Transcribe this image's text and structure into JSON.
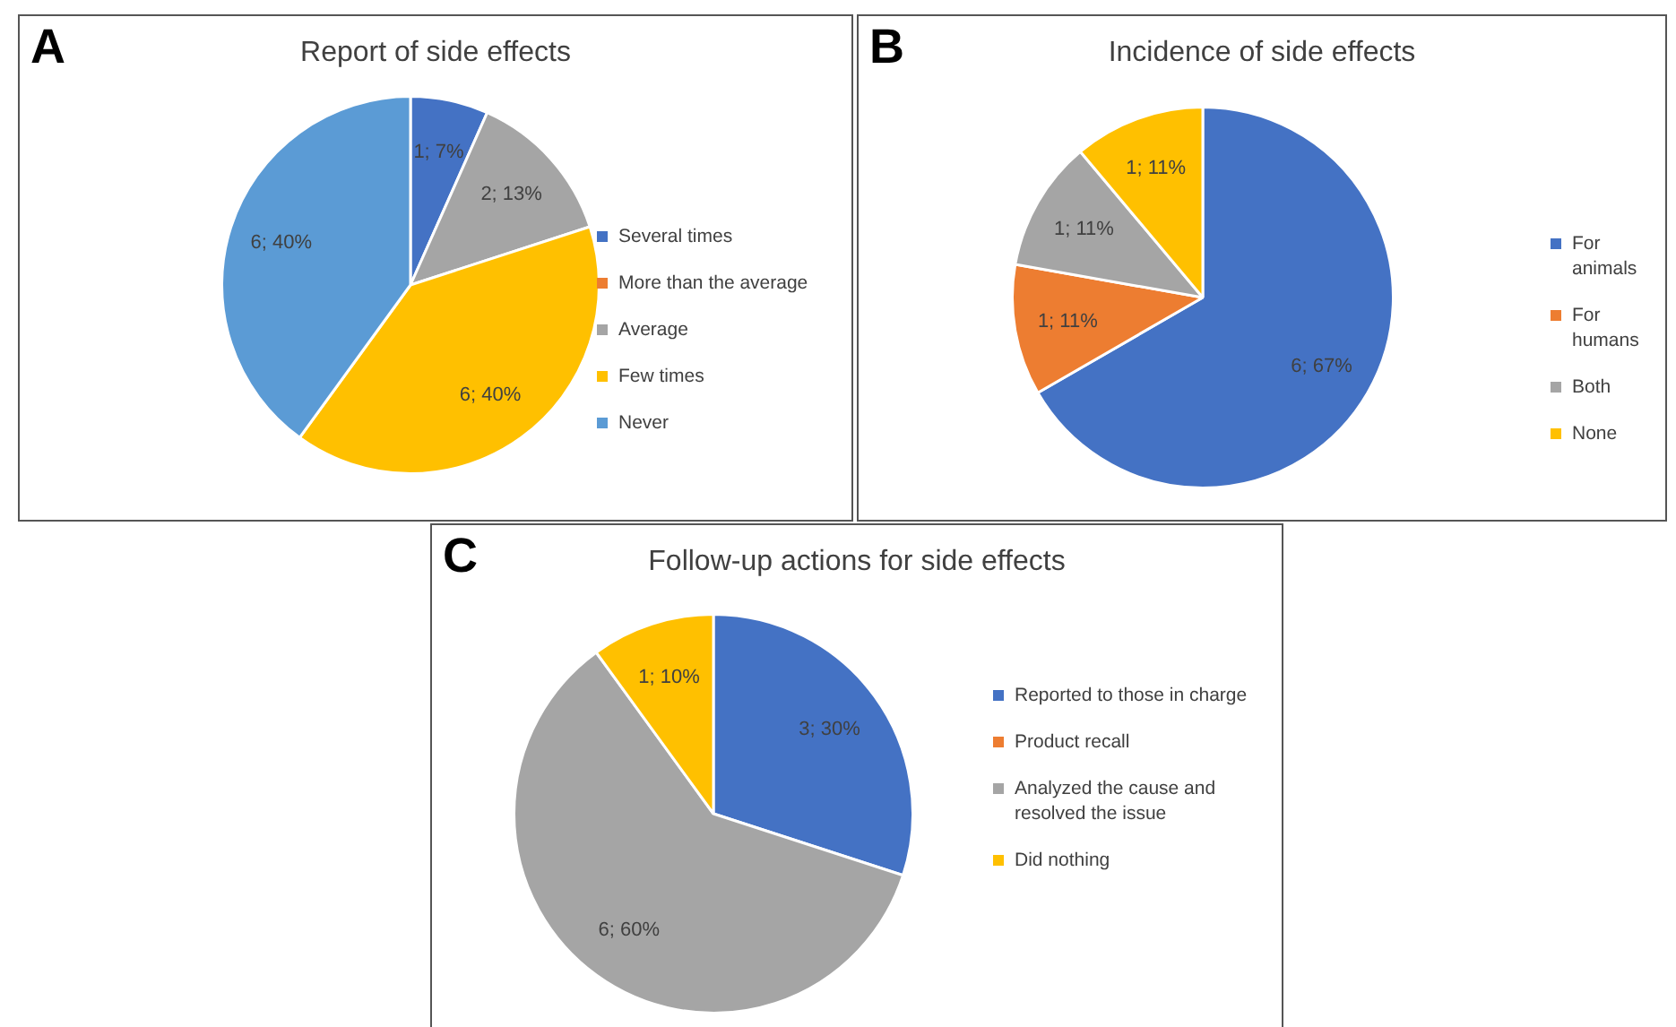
{
  "chart_data": [
    {
      "type": "pie",
      "title": "Report of side effects",
      "annotations": [
        "A"
      ],
      "categories": [
        "Several times",
        "More than the average",
        "Average",
        "Few times",
        "Never"
      ],
      "values": [
        1,
        0,
        2,
        6,
        6
      ],
      "colors": [
        "#4472c4",
        "#ed7d31",
        "#a5a5a5",
        "#ffc000",
        "#5b9bd5"
      ],
      "value_labels": [
        "1; 7%",
        null,
        "2; 13%",
        "6; 40%",
        "6; 40%"
      ],
      "legend": "right"
    },
    {
      "type": "pie",
      "title": "Incidence of side effects",
      "annotations": [
        "B"
      ],
      "categories": [
        "For animals",
        "For humans",
        "Both",
        "None"
      ],
      "values": [
        6,
        1,
        1,
        1
      ],
      "colors": [
        "#4472c4",
        "#ed7d31",
        "#a5a5a5",
        "#ffc000"
      ],
      "value_labels": [
        "6; 67%",
        "1; 11%",
        "1; 11%",
        "1; 11%"
      ],
      "legend": "right"
    },
    {
      "type": "pie",
      "title": "Follow-up actions for side effects",
      "annotations": [
        "C"
      ],
      "categories": [
        "Reported to those in charge",
        "Product recall",
        "Analyzed the cause and resolved the issue",
        "Did nothing"
      ],
      "values": [
        3,
        0,
        6,
        1
      ],
      "colors": [
        "#4472c4",
        "#ed7d31",
        "#a5a5a5",
        "#ffc000"
      ],
      "value_labels": [
        "3; 30%",
        null,
        "6; 60%",
        "1; 10%"
      ],
      "legend": "right"
    }
  ]
}
